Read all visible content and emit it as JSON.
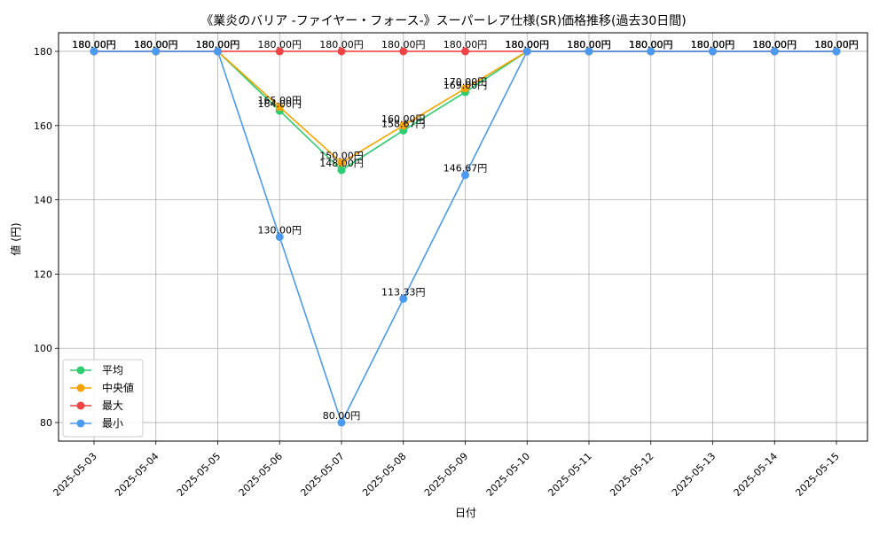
{
  "chart_data": {
    "type": "line",
    "title": "《業炎のバリア -ファイヤー・フォース-》スーパーレア仕様(SR)価格推移(過去30日間)",
    "xlabel": "日付",
    "ylabel": "値 (円)",
    "ylim": [
      75,
      185
    ],
    "yticks": [
      80,
      100,
      120,
      140,
      160,
      180
    ],
    "grid": true,
    "legend_position": "lower-left",
    "label_suffix": "円",
    "categories": [
      "2025-05-03",
      "2025-05-04",
      "2025-05-05",
      "2025-05-06",
      "2025-05-07",
      "2025-05-08",
      "2025-05-09",
      "2025-05-10",
      "2025-05-11",
      "2025-05-12",
      "2025-05-13",
      "2025-05-14",
      "2025-05-15"
    ],
    "series": [
      {
        "name": "平均",
        "color": "#2ecc71",
        "values": [
          180,
          180,
          180,
          164.0,
          148.0,
          158.67,
          169.0,
          180,
          180,
          180,
          180,
          180,
          180
        ],
        "labels": [
          "180.00円",
          "180.00円",
          "180.00円",
          "164.00円",
          "148.00円",
          "158.67円",
          "169.00円",
          "180.00円",
          "180.00円",
          "180.00円",
          "180.00円",
          "180.00円",
          "180.00円"
        ]
      },
      {
        "name": "中央値",
        "color": "#f5a300",
        "values": [
          180,
          180,
          180,
          165.0,
          150.0,
          160.0,
          170.0,
          180,
          180,
          180,
          180,
          180,
          180
        ],
        "labels": [
          "180.00円",
          "180.00円",
          "180.00円",
          "165.00円",
          "150.00円",
          "160.00円",
          "170.00円",
          "180.00円",
          "180.00円",
          "180.00円",
          "180.00円",
          "180.00円",
          "180.00円"
        ]
      },
      {
        "name": "最大",
        "color": "#ef4444",
        "values": [
          180,
          180,
          180,
          180,
          180,
          180,
          180,
          180,
          180,
          180,
          180,
          180,
          180
        ],
        "labels": [
          "180.00円",
          "180.00円",
          "180.00円",
          "180.00円",
          "180.00円",
          "180.00円",
          "180.00円",
          "180.00円",
          "180.00円",
          "180.00円",
          "180.00円",
          "180.00円",
          "180.00円"
        ]
      },
      {
        "name": "最小",
        "color": "#4a9af0",
        "values": [
          180,
          180,
          180,
          130.0,
          80.0,
          113.33,
          146.67,
          180,
          180,
          180,
          180,
          180,
          180
        ],
        "labels": [
          "180.00円",
          "180.00円",
          "180.00円",
          "130.00円",
          "80.00円",
          "113.33円",
          "146.67円",
          "180.00円",
          "180.00円",
          "180.00円",
          "180.00円",
          "180.00円",
          "180.00円"
        ]
      }
    ]
  }
}
